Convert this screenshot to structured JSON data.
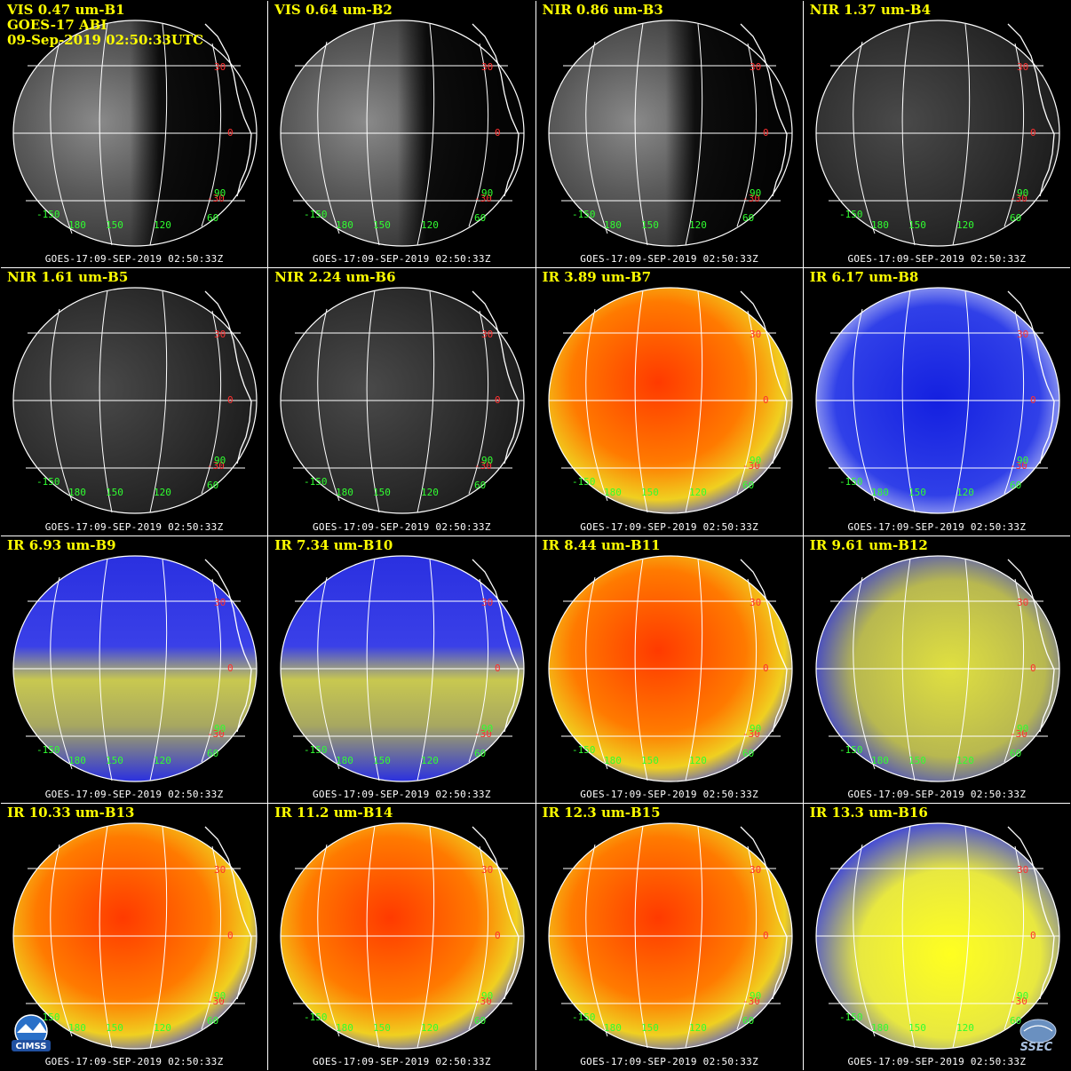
{
  "header": {
    "satellite": "GOES-17 ABI",
    "datetime": "09-Sep-2019 02:50:33UTC"
  },
  "stamp": "GOES-17:09-SEP-2019 02:50:33Z",
  "lat_labels": [
    "30",
    "0",
    "-30"
  ],
  "lon_labels": [
    "-150",
    "180",
    "150",
    "120",
    "60"
  ],
  "ring_label": "90",
  "colors": {
    "title": "#ffff00",
    "lat_label": "#ff3030",
    "lon_label": "#30ff30",
    "grid": "#ffffff"
  },
  "panels": [
    {
      "title": "VIS 0.47 um-B1",
      "style": "vis"
    },
    {
      "title": "VIS 0.64 um-B2",
      "style": "vis"
    },
    {
      "title": "NIR 0.86 um-B3",
      "style": "vis"
    },
    {
      "title": "NIR 1.37 um-B4",
      "style": "vis-dark"
    },
    {
      "title": "NIR 1.61 um-B5",
      "style": "vis-dark"
    },
    {
      "title": "NIR 2.24 um-B6",
      "style": "vis-dark"
    },
    {
      "title": "IR 3.89 um-B7",
      "style": "ir-warm"
    },
    {
      "title": "IR 6.17 um-B8",
      "style": "wv-blue"
    },
    {
      "title": "IR 6.93 um-B9",
      "style": "wv-mix"
    },
    {
      "title": "IR 7.34 um-B10",
      "style": "wv-mix"
    },
    {
      "title": "IR 8.44 um-B11",
      "style": "ir-warm"
    },
    {
      "title": "IR 9.61 um-B12",
      "style": "ozone"
    },
    {
      "title": "IR 10.33 um-B13",
      "style": "ir-warm"
    },
    {
      "title": "IR 11.2 um-B14",
      "style": "ir-warm"
    },
    {
      "title": "IR 12.3 um-B15",
      "style": "ir-warm"
    },
    {
      "title": "IR 13.3 um-B16",
      "style": "co2"
    }
  ],
  "logos": {
    "left": "CIMSS",
    "right": "SSEC"
  }
}
